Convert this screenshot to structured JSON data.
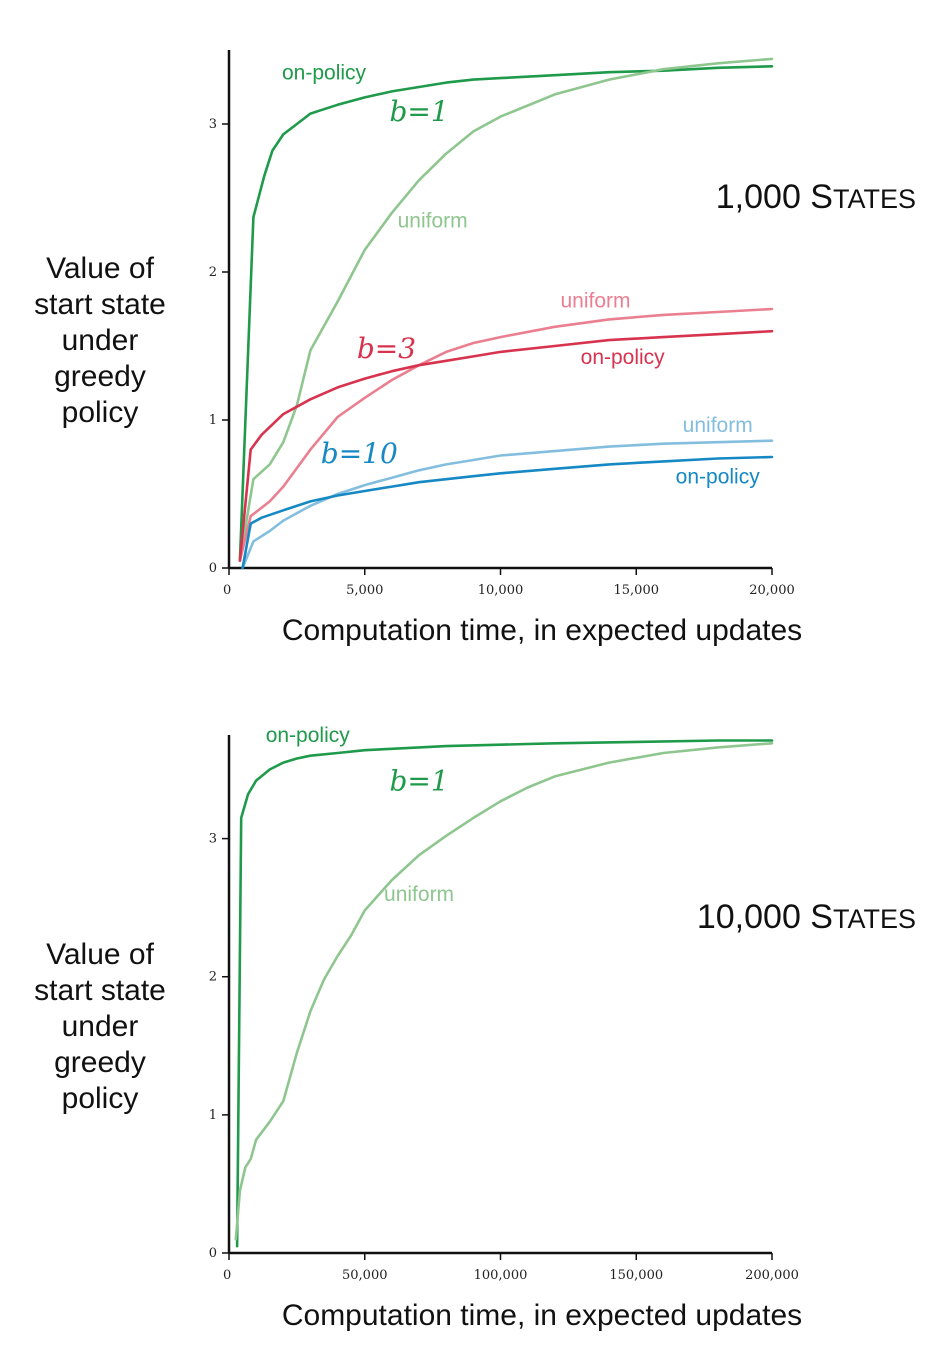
{
  "colors": {
    "b1_on_policy": "#1f9a4a",
    "b1_uniform": "#8fc68f",
    "b3_on_policy": "#d8334e",
    "b3_uniform": "#ea7f90",
    "b10_on_policy": "#1688c4",
    "b10_uniform": "#84bede"
  },
  "chart_data": [
    {
      "type": "line",
      "title": "1,000 STATES",
      "title_main": "1,000 S",
      "title_caps": "TATES",
      "xlabel": "Computation time, in expected updates",
      "ylabel": [
        "Value of",
        "start state",
        "under",
        "greedy",
        "policy"
      ],
      "xlim": [
        0,
        20000
      ],
      "ylim": [
        0,
        3.5
      ],
      "xticks": [
        0,
        5000,
        10000,
        15000,
        20000
      ],
      "xtick_labels": [
        "0",
        "5,000",
        "10,000",
        "15,000",
        "20,000"
      ],
      "yticks": [
        0,
        1,
        2,
        3
      ],
      "ytick_labels": [
        "0",
        "1",
        "2",
        "3"
      ],
      "grid": false,
      "legend": "none",
      "branch_labels": [
        {
          "text": "b=1",
          "color_key": "b1_on_policy",
          "x": 7000,
          "y": 3.02
        },
        {
          "text": "b=3",
          "color_key": "b3_on_policy",
          "x": 5800,
          "y": 1.42
        },
        {
          "text": "b=10",
          "color_key": "b10_on_policy",
          "x": 4800,
          "y": 0.71
        }
      ],
      "series": [
        {
          "name": "on-policy",
          "color_key": "b1_on_policy",
          "label_x": 3500,
          "label_y": 3.3,
          "x": [
            400,
            900,
            1300,
            1600,
            2000,
            2500,
            3000,
            3500,
            4000,
            5000,
            6000,
            7000,
            8000,
            9000,
            10000,
            12000,
            14000,
            16000,
            18000,
            20000
          ],
          "y": [
            0.05,
            2.37,
            2.65,
            2.82,
            2.93,
            3.0,
            3.07,
            3.1,
            3.13,
            3.18,
            3.22,
            3.25,
            3.28,
            3.3,
            3.31,
            3.33,
            3.35,
            3.36,
            3.38,
            3.39
          ]
        },
        {
          "name": "uniform",
          "color_key": "b1_uniform",
          "label_x": 7500,
          "label_y": 2.3,
          "x": [
            400,
            900,
            1500,
            2000,
            2500,
            3000,
            4000,
            5000,
            6000,
            7000,
            8000,
            9000,
            10000,
            12000,
            14000,
            16000,
            18000,
            20000
          ],
          "y": [
            0.05,
            0.6,
            0.7,
            0.85,
            1.1,
            1.47,
            1.8,
            2.15,
            2.4,
            2.62,
            2.8,
            2.95,
            3.05,
            3.2,
            3.3,
            3.37,
            3.41,
            3.44
          ]
        },
        {
          "name": "uniform",
          "color_key": "b3_uniform",
          "label_x": 13500,
          "label_y": 1.76,
          "x": [
            400,
            800,
            1500,
            2000,
            3000,
            4000,
            5000,
            6000,
            7000,
            8000,
            9000,
            10000,
            12000,
            14000,
            16000,
            18000,
            20000
          ],
          "y": [
            0.05,
            0.35,
            0.45,
            0.55,
            0.8,
            1.02,
            1.15,
            1.27,
            1.37,
            1.46,
            1.52,
            1.56,
            1.63,
            1.68,
            1.71,
            1.73,
            1.75
          ]
        },
        {
          "name": "on-policy",
          "color_key": "b3_on_policy",
          "label_x": 14500,
          "label_y": 1.38,
          "x": [
            400,
            800,
            1200,
            2000,
            3000,
            4000,
            5000,
            6000,
            7000,
            8000,
            9000,
            10000,
            12000,
            14000,
            16000,
            18000,
            20000
          ],
          "y": [
            0.05,
            0.8,
            0.9,
            1.04,
            1.14,
            1.22,
            1.28,
            1.33,
            1.37,
            1.4,
            1.43,
            1.46,
            1.5,
            1.54,
            1.56,
            1.58,
            1.6
          ]
        },
        {
          "name": "uniform",
          "color_key": "b10_uniform",
          "label_x": 18000,
          "label_y": 0.92,
          "x": [
            500,
            900,
            1500,
            2000,
            3000,
            4000,
            5000,
            6000,
            7000,
            8000,
            9000,
            10000,
            12000,
            14000,
            16000,
            18000,
            20000
          ],
          "y": [
            0.0,
            0.18,
            0.25,
            0.32,
            0.42,
            0.5,
            0.56,
            0.61,
            0.66,
            0.7,
            0.73,
            0.76,
            0.79,
            0.82,
            0.84,
            0.85,
            0.86
          ]
        },
        {
          "name": "on-policy",
          "color_key": "b10_on_policy",
          "label_x": 18000,
          "label_y": 0.57,
          "x": [
            500,
            800,
            1200,
            2000,
            3000,
            4000,
            5000,
            6000,
            7000,
            8000,
            9000,
            10000,
            12000,
            14000,
            16000,
            18000,
            20000
          ],
          "y": [
            0.0,
            0.3,
            0.34,
            0.39,
            0.45,
            0.49,
            0.52,
            0.55,
            0.58,
            0.6,
            0.62,
            0.64,
            0.67,
            0.7,
            0.72,
            0.74,
            0.75
          ]
        }
      ]
    },
    {
      "type": "line",
      "title": "10,000 STATES",
      "title_main": "10,000 S",
      "title_caps": "TATES",
      "xlabel": "Computation time, in expected updates",
      "ylabel": [
        "Value of",
        "start state",
        "under",
        "greedy",
        "policy"
      ],
      "xlim": [
        0,
        200000
      ],
      "ylim": [
        0,
        3.75
      ],
      "xticks": [
        0,
        50000,
        100000,
        150000,
        200000
      ],
      "xtick_labels": [
        "0",
        "50,000",
        "100,000",
        "150,000",
        "200,000"
      ],
      "yticks": [
        0,
        1,
        2,
        3
      ],
      "ytick_labels": [
        "0",
        "1",
        "2",
        "3"
      ],
      "grid": false,
      "legend": "none",
      "branch_labels": [
        {
          "text": "b=1",
          "color_key": "b1_on_policy",
          "x": 70000,
          "y": 3.35
        }
      ],
      "series": [
        {
          "name": "on-policy",
          "color_key": "b1_on_policy",
          "label_x": 29000,
          "label_y": 3.7,
          "x": [
            3000,
            4500,
            7000,
            10000,
            15000,
            20000,
            25000,
            30000,
            40000,
            50000,
            60000,
            70000,
            80000,
            100000,
            120000,
            150000,
            180000,
            200000
          ],
          "y": [
            0.05,
            3.15,
            3.32,
            3.42,
            3.5,
            3.55,
            3.58,
            3.6,
            3.62,
            3.64,
            3.65,
            3.66,
            3.67,
            3.68,
            3.69,
            3.7,
            3.71,
            3.71
          ]
        },
        {
          "name": "uniform",
          "color_key": "b1_uniform",
          "label_x": 70000,
          "label_y": 2.55,
          "x": [
            2500,
            4000,
            6000,
            8000,
            10000,
            15000,
            20000,
            25000,
            30000,
            35000,
            40000,
            45000,
            50000,
            60000,
            70000,
            80000,
            90000,
            100000,
            110000,
            120000,
            140000,
            160000,
            180000,
            200000
          ],
          "y": [
            0.1,
            0.45,
            0.62,
            0.68,
            0.82,
            0.95,
            1.1,
            1.45,
            1.75,
            1.98,
            2.15,
            2.3,
            2.48,
            2.7,
            2.88,
            3.02,
            3.15,
            3.27,
            3.37,
            3.45,
            3.55,
            3.62,
            3.66,
            3.69
          ]
        }
      ]
    }
  ]
}
